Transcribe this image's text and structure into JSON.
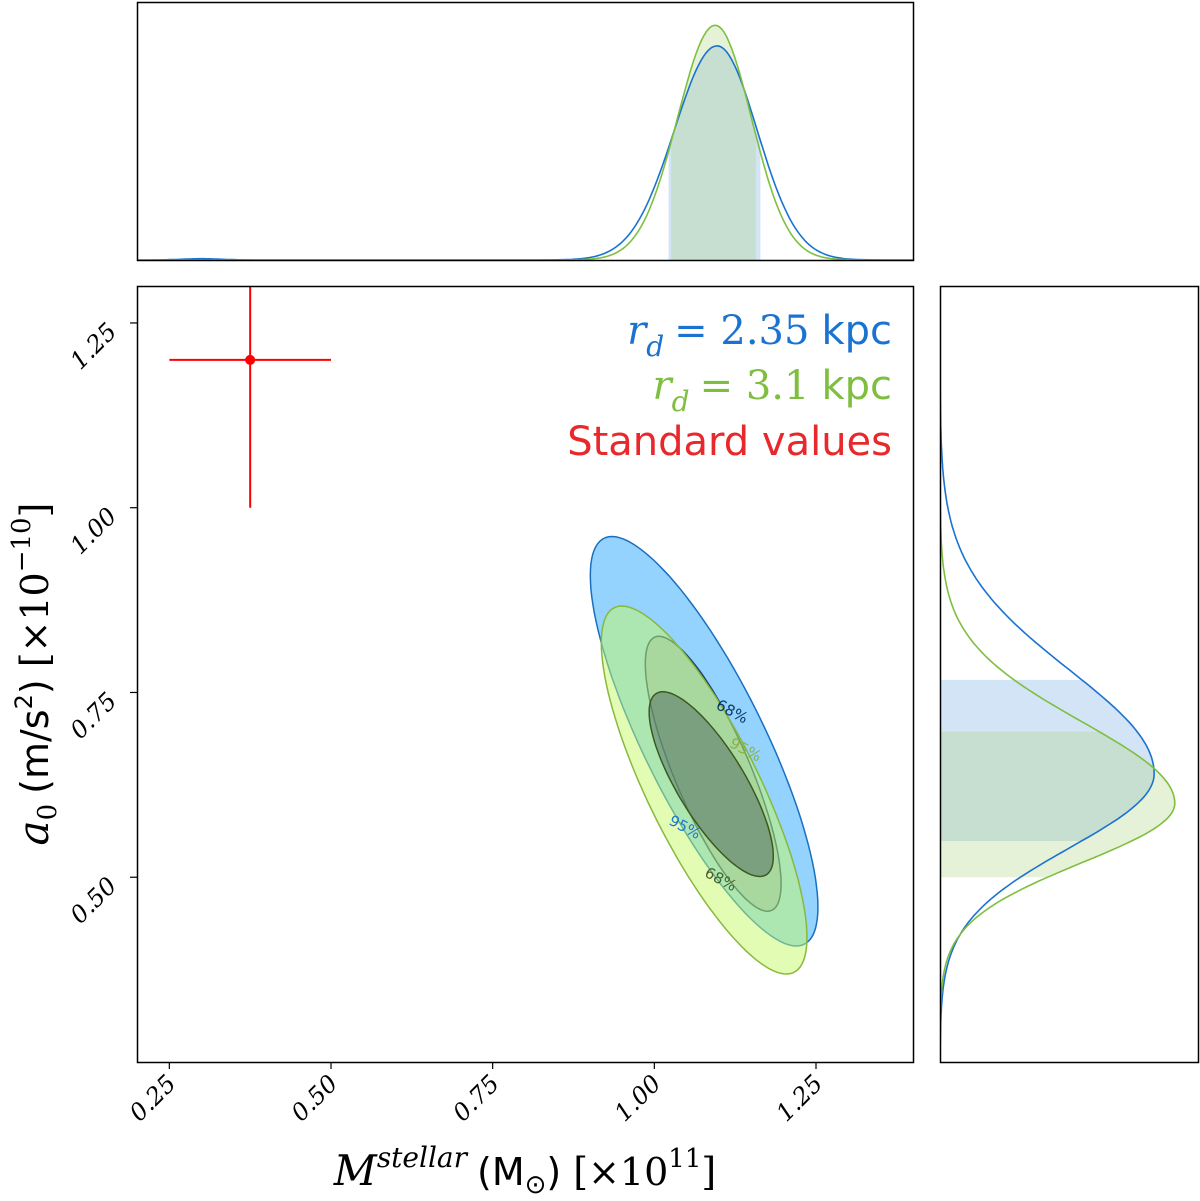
{
  "chart_data": {
    "type": "corner",
    "title": "",
    "xlabel": {
      "symbol": "M",
      "superscript": "stellar",
      "unit": "(M",
      "unit_sub": "⊙",
      "unit_close": ")",
      "scale": "[×10",
      "scale_exp": "11",
      "scale_close": "]"
    },
    "ylabel": {
      "symbol": "a",
      "subscript": "0",
      "unit": "(m/s",
      "unit_exp": "2",
      "unit_close": ")",
      "scale": "[×10",
      "scale_exp": "−10",
      "scale_close": "]"
    },
    "xlim": [
      0.2,
      1.4
    ],
    "ylim": [
      0.25,
      1.3
    ],
    "xticks": [
      0.25,
      0.5,
      0.75,
      1.0,
      1.25
    ],
    "xtick_labels": [
      "0.25",
      "0.50",
      "0.75",
      "1.00",
      "1.25"
    ],
    "yticks": [
      0.5,
      0.75,
      1.0,
      1.25
    ],
    "ytick_labels": [
      "0.50",
      "0.75",
      "1.00",
      "1.25"
    ],
    "legend": {
      "placement": "top-right",
      "entries": [
        {
          "var": "r",
          "sub": "d",
          "eq": "= 2.35",
          "unit": "kpc",
          "color": "#1a73d0"
        },
        {
          "var": "r",
          "sub": "d",
          "eq": "= 3.1",
          "unit": "kpc",
          "color": "#7fbf3f"
        },
        {
          "text": "Standard values",
          "color": "#e8282b"
        }
      ]
    },
    "reference_point": {
      "label": "Standard values",
      "x": 0.375,
      "y": 1.2,
      "xerr": [
        0.25,
        0.5
      ],
      "yerr": [
        1.0,
        1.4
      ],
      "color": "#ff0000"
    },
    "series": [
      {
        "name": "r_d = 2.35 kpc",
        "color": "#1a73d0",
        "contours": [
          {
            "level": "95%",
            "cx": 1.077,
            "cy": 0.684,
            "sx": 0.176,
            "sy": 0.277,
            "rho": -0.81,
            "fill": "#93d3fd",
            "stroke": "#1a6fc0",
            "label_x": 1.09,
            "label_y": 0.49,
            "label_color": "#1f77d0"
          },
          {
            "level": "68%",
            "cx": 1.091,
            "cy": 0.64,
            "sx": 0.105,
            "sy": 0.186,
            "rho": -0.8,
            "fill": "#8db5d5",
            "stroke": "#123f6e",
            "label_x": 1.18,
            "label_y": 0.66,
            "label_color": "#0b3a66"
          }
        ],
        "marginal_x": {
          "components": [
            {
              "mu": 1.097,
              "sl": 0.066,
              "sh": 0.062,
              "w": 1
            },
            {
              "mu": 0.3,
              "sl": 0.03,
              "sh": 0.03,
              "w": 0.006
            }
          ],
          "peak": 0.83,
          "band": [
            1.022,
            1.164
          ]
        },
        "marginal_y": {
          "components": [
            {
              "mu": 0.64,
              "sl": 0.1,
              "sh": 0.14,
              "w": 1
            }
          ],
          "peak": 0.83,
          "band": [
            0.549,
            0.767
          ]
        },
        "band_fill": "rgba(105,165,222,0.3)"
      },
      {
        "name": "r_d = 3.1 kpc",
        "color": "#7fbf3f",
        "contours": [
          {
            "level": "95%",
            "cx": 1.077,
            "cy": 0.618,
            "sx": 0.159,
            "sy": 0.249,
            "rho": -0.8,
            "fill": "rgba(197,251,103,0.5)",
            "stroke": "#8ab83c",
            "label_x": 1.19,
            "label_y": 0.645,
            "label_color": "#8ab24a"
          },
          {
            "level": "68%",
            "cx": 1.088,
            "cy": 0.626,
            "sx": 0.096,
            "sy": 0.125,
            "rho": -0.78,
            "fill": "rgba(75,104,98,0.5)",
            "stroke": "#3d5a1e",
            "label_x": 1.15,
            "label_y": 0.475,
            "label_color": "#4a5e2a"
          }
        ],
        "marginal_x": {
          "components": [
            {
              "mu": 1.094,
              "sl": 0.058,
              "sh": 0.056,
              "w": 1
            }
          ],
          "peak": 0.91,
          "band": [
            1.026,
            1.157
          ]
        },
        "marginal_y": {
          "components": [
            {
              "mu": 0.6,
              "sl": 0.08,
              "sh": 0.11,
              "w": 1
            }
          ],
          "peak": 0.91,
          "band": [
            0.5,
            0.697
          ]
        },
        "band_fill": "rgba(172,212,125,0.3)"
      }
    ]
  }
}
